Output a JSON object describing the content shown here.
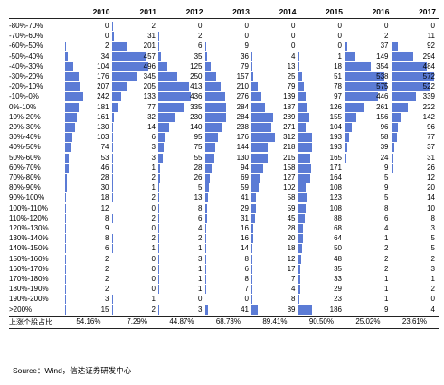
{
  "chart_data": {
    "type": "table",
    "categories": [
      "-80%-70%",
      "-70%-60%",
      "-60%-50%",
      "-50%-40%",
      "-40%-30%",
      "-30%-20%",
      "-20%-10%",
      "-10%-0%",
      "0%-10%",
      "10%-20%",
      "20%-30%",
      "30%-40%",
      "40%-50%",
      "50%-60%",
      "60%-70%",
      "70%-80%",
      "80%-90%",
      "90%-100%",
      "100%-110%",
      "110%-120%",
      "120%-130%",
      "130%-140%",
      "140%-150%",
      "150%-160%",
      "160%-170%",
      "170%-180%",
      "180%-190%",
      "190%-200%",
      ">200%"
    ],
    "series": [
      {
        "name": "2010",
        "values": [
          0,
          0,
          2,
          34,
          104,
          176,
          207,
          242,
          181,
          161,
          130,
          103,
          74,
          53,
          46,
          28,
          30,
          18,
          12,
          8,
          9,
          8,
          6,
          2,
          2,
          2,
          2,
          3,
          15
        ]
      },
      {
        "name": "2011",
        "values": [
          2,
          31,
          201,
          457,
          496,
          345,
          205,
          133,
          77,
          32,
          14,
          6,
          3,
          3,
          1,
          2,
          1,
          2,
          0,
          2,
          0,
          2,
          1,
          0,
          0,
          0,
          0,
          1,
          2
        ]
      },
      {
        "name": "2012",
        "values": [
          0,
          2,
          6,
          35,
          125,
          250,
          413,
          436,
          335,
          230,
          140,
          95,
          75,
          55,
          28,
          26,
          5,
          13,
          8,
          6,
          4,
          2,
          1,
          3,
          1,
          1,
          1,
          0,
          3
        ]
      },
      {
        "name": "2013",
        "values": [
          0,
          0,
          9,
          36,
          79,
          157,
          210,
          276,
          284,
          284,
          238,
          176,
          144,
          130,
          94,
          69,
          59,
          41,
          29,
          31,
          16,
          16,
          14,
          8,
          6,
          8,
          7,
          0,
          41
        ]
      },
      {
        "name": "2014",
        "values": [
          0,
          0,
          0,
          4,
          13,
          25,
          79,
          139,
          187,
          289,
          271,
          312,
          218,
          215,
          158,
          127,
          102,
          58,
          59,
          45,
          28,
          20,
          18,
          12,
          17,
          7,
          4,
          8,
          89
        ]
      },
      {
        "name": "2015",
        "values": [
          0,
          0,
          0,
          1,
          18,
          51,
          78,
          97,
          126,
          155,
          104,
          193,
          193,
          165,
          171,
          164,
          108,
          123,
          108,
          88,
          68,
          64,
          50,
          48,
          35,
          33,
          29,
          23,
          186
        ]
      },
      {
        "name": "2016",
        "values": [
          0,
          2,
          37,
          149,
          354,
          538,
          575,
          446,
          261,
          156,
          96,
          58,
          39,
          24,
          9,
          5,
          9,
          5,
          8,
          6,
          4,
          1,
          2,
          2,
          2,
          1,
          1,
          1,
          9
        ]
      },
      {
        "name": "2017",
        "values": [
          0,
          11,
          92,
          294,
          484,
          572,
          522,
          339,
          222,
          142,
          96,
          77,
          37,
          31,
          26,
          12,
          20,
          14,
          10,
          8,
          3,
          5,
          5,
          2,
          3,
          1,
          2,
          0,
          4
        ]
      }
    ],
    "footer_label": "上涨个股占比",
    "footer_values": [
      "54.16%",
      "7.29%",
      "44.87%",
      "68.73%",
      "89.41%",
      "90.50%",
      "25.02%",
      "23.61%"
    ],
    "xlim": [
      0,
      600
    ],
    "bar_color": "#5b7bd5"
  },
  "source_text": "Source：Wind，信达证券研发中心"
}
